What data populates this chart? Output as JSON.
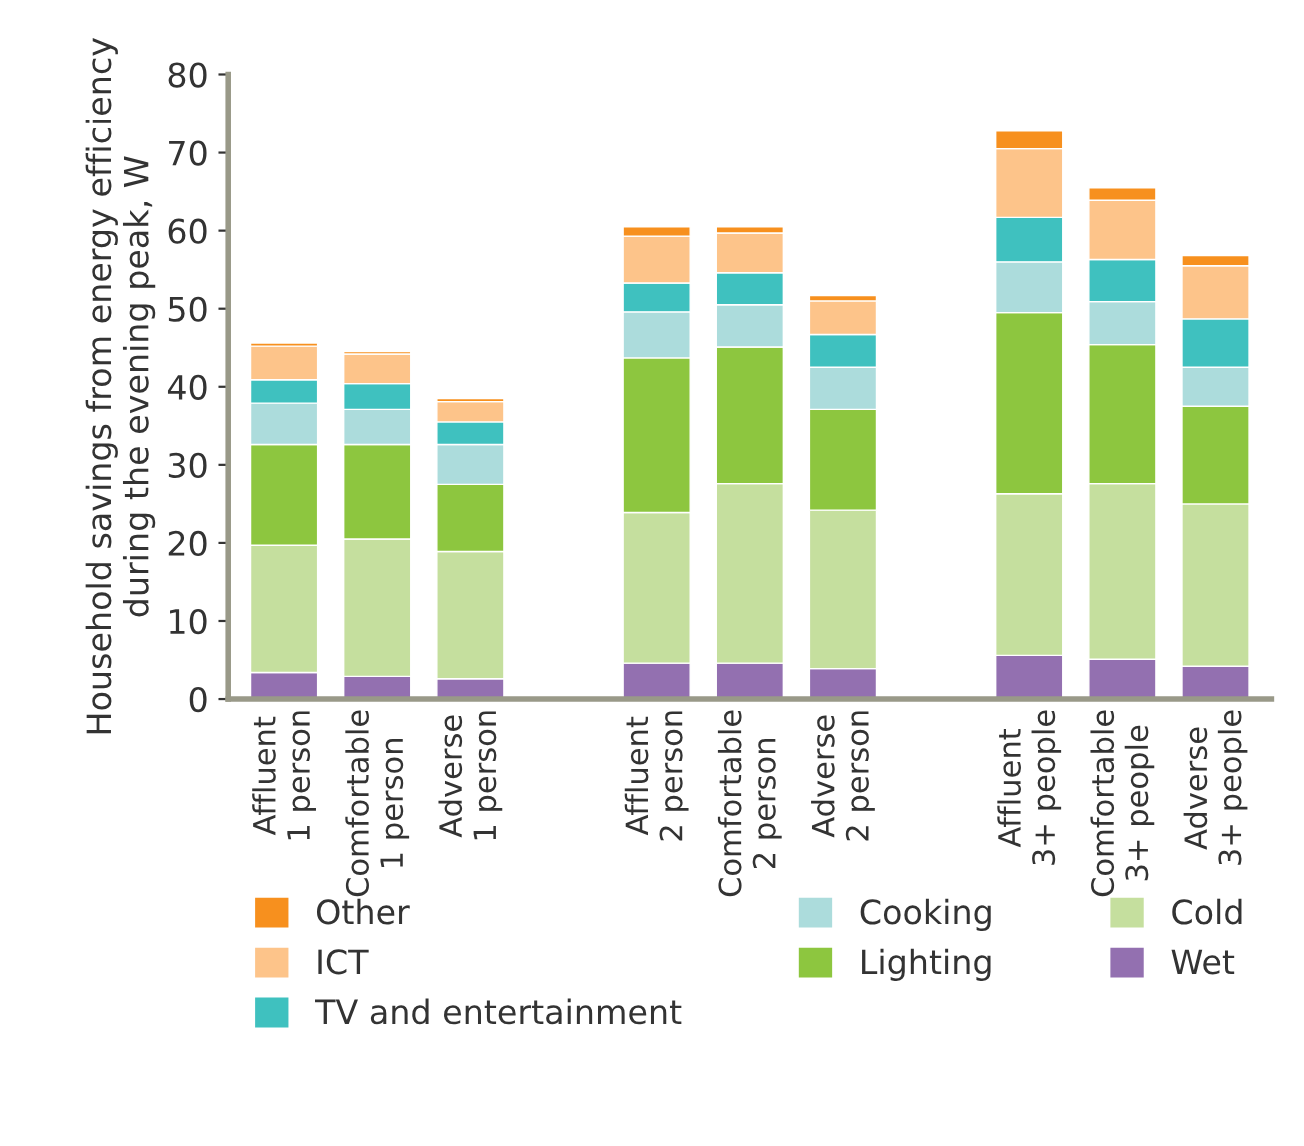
{
  "chart_data": {
    "type": "bar",
    "stacked": true,
    "ylabel": "Household savings from energy efficiency\nduring the evening peak, W",
    "categories": [
      "Affluent\n1 person",
      "Comfortable\n1 person",
      "Adverse\n1 person",
      null,
      "Affluent\n2 person",
      "Comfortable\n2 person",
      "Adverse\n2 person",
      null,
      "Affluent\n3+ people",
      "Comfortable\n3+ people",
      "Adverse\n3+ people"
    ],
    "series": [
      {
        "name": "Wet",
        "color": "#9370b0",
        "values": [
          3.4,
          2.9,
          2.6,
          null,
          4.6,
          4.6,
          3.9,
          null,
          5.6,
          5.1,
          4.2
        ]
      },
      {
        "name": "Cold",
        "color": "#c5df9e",
        "values": [
          16.3,
          17.6,
          16.3,
          null,
          19.3,
          23.0,
          20.3,
          null,
          20.7,
          22.5,
          20.8
        ]
      },
      {
        "name": "Lighting",
        "color": "#8dc63f",
        "values": [
          12.9,
          12.1,
          8.6,
          null,
          19.8,
          17.5,
          12.9,
          null,
          23.2,
          17.8,
          12.5
        ]
      },
      {
        "name": "Cooking",
        "color": "#acdcdc",
        "values": [
          5.3,
          4.5,
          5.1,
          null,
          5.9,
          5.4,
          5.4,
          null,
          6.5,
          5.5,
          5.0
        ]
      },
      {
        "name": "TV and entertainment",
        "color": "#3fc1bf",
        "values": [
          3.0,
          3.3,
          2.9,
          null,
          3.7,
          4.1,
          4.2,
          null,
          5.7,
          5.4,
          6.2
        ]
      },
      {
        "name": "ICT",
        "color": "#fdc48a",
        "values": [
          4.3,
          3.8,
          2.6,
          null,
          6.0,
          5.1,
          4.3,
          null,
          8.8,
          7.6,
          6.8
        ]
      },
      {
        "name": "Other",
        "color": "#f7901e",
        "values": [
          0.4,
          0.3,
          0.4,
          null,
          1.2,
          0.8,
          0.7,
          null,
          2.3,
          1.6,
          1.3
        ]
      }
    ],
    "ylim": [
      0,
      80
    ],
    "yticks": [
      0,
      10,
      20,
      30,
      40,
      50,
      60,
      70,
      80
    ],
    "grid": false,
    "legend": "bottom"
  }
}
